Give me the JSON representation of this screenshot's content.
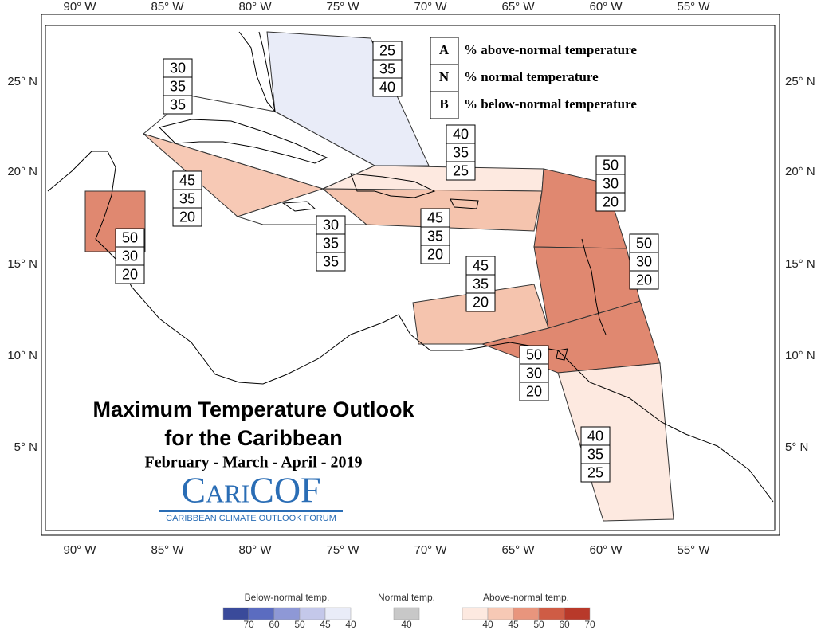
{
  "map": {
    "lon_labels": [
      "90° W",
      "85° W",
      "80° W",
      "75° W",
      "70° W",
      "65° W",
      "60° W",
      "55° W"
    ],
    "lat_labels": [
      "25° N",
      "20° N",
      "15° N",
      "10° N",
      "5° N"
    ],
    "key": [
      {
        "letter": "A",
        "text": "% above-normal temperature"
      },
      {
        "letter": "N",
        "text": "% normal temperature"
      },
      {
        "letter": "B",
        "text": "% below-normal temperature"
      }
    ],
    "regions": [
      {
        "color": "#e9ecf8",
        "values": [
          25,
          35,
          40
        ]
      },
      {
        "color": "#ffffff",
        "values": [
          30,
          35,
          35
        ]
      },
      {
        "color": "#f7c9b5",
        "values": [
          45,
          35,
          20
        ]
      },
      {
        "color": "#e08870",
        "values": [
          50,
          30,
          20
        ]
      },
      {
        "color": "#ffffff",
        "values": [
          30,
          35,
          35
        ]
      },
      {
        "color": "#fde9e0",
        "values": [
          40,
          35,
          25
        ]
      },
      {
        "color": "#f5c4ae",
        "values": [
          45,
          35,
          20
        ]
      },
      {
        "color": "#e08870",
        "values": [
          50,
          30,
          20
        ]
      },
      {
        "color": "#e08870",
        "values": [
          50,
          30,
          20
        ]
      },
      {
        "color": "#e08870",
        "values": [
          50,
          30,
          20
        ]
      },
      {
        "color": "#f5c4ae",
        "values": [
          45,
          35,
          20
        ]
      },
      {
        "color": "#fde9e0",
        "values": [
          40,
          35,
          25
        ]
      }
    ],
    "title": [
      "Maximum Temperature Outlook",
      "for the Caribbean"
    ],
    "subtitle": "February - March - April - 2019",
    "logo": "CariCOF",
    "logo_caption": "CARIBBEAN CLIMATE OUTLOOK FORUM"
  },
  "legend": [
    {
      "title": "Below-normal temp.",
      "ticks": [
        70,
        60,
        50,
        45,
        40
      ],
      "colors": [
        "#3a4a9a",
        "#5b6cc0",
        "#8e98d6",
        "#c4c8ea",
        "#e9ecf8"
      ]
    },
    {
      "title": "Normal temp.",
      "ticks": [
        40
      ],
      "colors": [
        "#c8c8c8"
      ]
    },
    {
      "title": "Above-normal temp.",
      "ticks": [
        40,
        45,
        50,
        60,
        70
      ],
      "colors": [
        "#fde9e0",
        "#f7c9b5",
        "#e8957d",
        "#cf5c45",
        "#b8392a"
      ]
    }
  ]
}
